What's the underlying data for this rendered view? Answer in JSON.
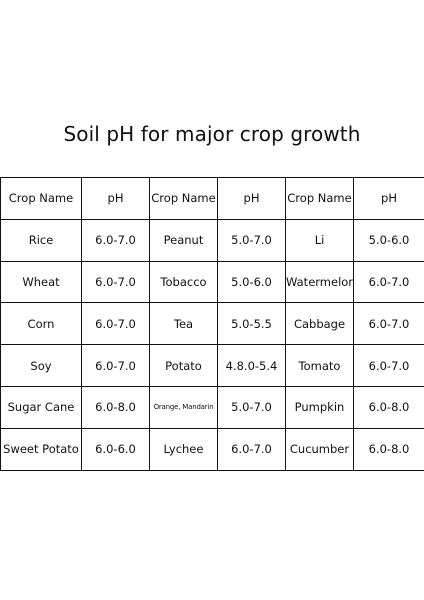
{
  "title": "Soil pH for major crop growth",
  "table": {
    "headers": [
      "Crop Name",
      "pH",
      "Crop Name",
      "pH",
      "Crop Name",
      "pH"
    ],
    "rows": [
      [
        "Rice",
        "6.0-7.0",
        "Peanut",
        "5.0-7.0",
        "Li",
        "5.0-6.0"
      ],
      [
        "Wheat",
        "6.0-7.0",
        "Tobacco",
        "5.0-6.0",
        "Watermelon",
        "6.0-7.0"
      ],
      [
        "Corn",
        "6.0-7.0",
        "Tea",
        "5.0-5.5",
        "Cabbage",
        "6.0-7.0"
      ],
      [
        "Soy",
        "6.0-7.0",
        "Potato",
        "4.8.0-5.4",
        "Tomato",
        "6.0-7.0"
      ],
      [
        "Sugar Cane",
        "6.0-8.0",
        "Orange, Mandarin",
        "5.0-7.0",
        "Pumpkin",
        "6.0-8.0"
      ],
      [
        "Sweet Potato",
        "6.0-6.0",
        "Lychee",
        "6.0-7.0",
        "Cucumber",
        "6.0-8.0"
      ]
    ]
  }
}
